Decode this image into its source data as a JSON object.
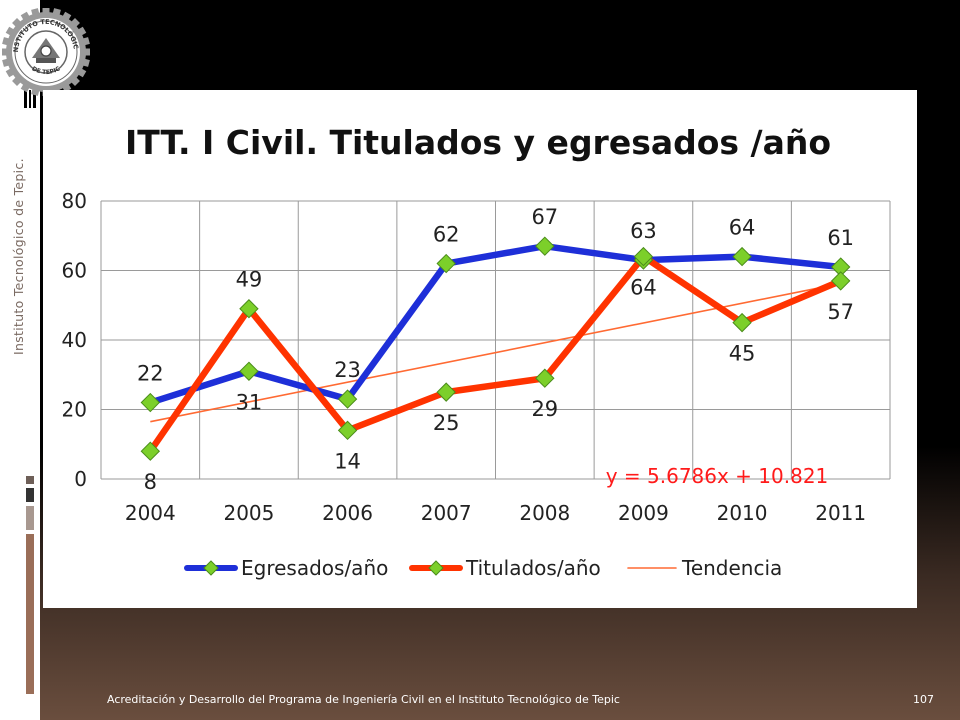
{
  "slide": {
    "side_text": "Instituto Tecnológico de Tepic.",
    "footer": "Acreditación y Desarrollo del Programa de Ingeniería Civil en el Instituto Tecnológico de Tepic",
    "page_number": "107",
    "logo_text_top": "INSTITUTO TECNOLÓGICO",
    "logo_text_bottom": "DE TEPIC"
  },
  "colors": {
    "egresados": "#1e2fd8",
    "titulados": "#ff3300",
    "tendencia": "#ff6a33",
    "marker": "#7ccf2a",
    "equation": "#ff1a1a"
  },
  "chart_data": {
    "type": "line",
    "title": "ITT. I Civil. Titulados y egresados /año",
    "categories": [
      "2004",
      "2005",
      "2006",
      "2007",
      "2008",
      "2009",
      "2010",
      "2011"
    ],
    "ylim": [
      0,
      80
    ],
    "yticks": [
      "0",
      "20",
      "40",
      "60",
      "80"
    ],
    "grid": true,
    "legend": "bottom",
    "series": [
      {
        "name": "Egresados/año",
        "values": [
          22,
          31,
          23,
          62,
          67,
          63,
          64,
          61
        ]
      },
      {
        "name": "Titulados/año",
        "values": [
          8,
          49,
          14,
          25,
          29,
          64,
          45,
          57
        ]
      }
    ],
    "trendline": {
      "name": "Tendencia",
      "slope": 5.6786,
      "intercept": 10.821,
      "equation": "y = 5.6786x + 10.821"
    }
  }
}
